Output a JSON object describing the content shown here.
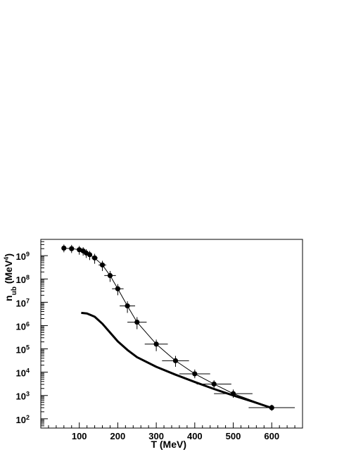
{
  "chart_data": {
    "type": "scatter",
    "title": "",
    "xlabel": "T (MeV)",
    "ylabel": {
      "base": "n",
      "sub": "ub",
      "rest": " (MeV",
      "sup": "4",
      "close": ")"
    },
    "xlim": [
      0,
      680
    ],
    "ylim": [
      40,
      5000000000
    ],
    "yscale": "log",
    "grid": false,
    "x_ticks": [
      {
        "value": 100,
        "label": "100"
      },
      {
        "value": 200,
        "label": "200"
      },
      {
        "value": 300,
        "label": "300"
      },
      {
        "value": 400,
        "label": "400"
      },
      {
        "value": 500,
        "label": "500"
      },
      {
        "value": 600,
        "label": "600"
      }
    ],
    "y_ticks": [
      {
        "value": 100,
        "base": "10",
        "exp": "2"
      },
      {
        "value": 1000,
        "base": "10",
        "exp": "3"
      },
      {
        "value": 10000,
        "base": "10",
        "exp": "4"
      },
      {
        "value": 100000,
        "base": "10",
        "exp": "5"
      },
      {
        "value": 1000000,
        "base": "10",
        "exp": "6"
      },
      {
        "value": 10000000,
        "base": "10",
        "exp": "7"
      },
      {
        "value": 100000000,
        "base": "10",
        "exp": "8"
      },
      {
        "value": 1000000000,
        "base": "10",
        "exp": "9"
      }
    ],
    "series": [
      {
        "kind": "points-with-errors",
        "connected": true,
        "color": "#000000",
        "points": [
          {
            "x": 60,
            "y": 2100000000.0,
            "xerr": 0,
            "ylo": 1400000000.0,
            "yhi": 3000000000.0
          },
          {
            "x": 80,
            "y": 2000000000.0,
            "xerr": 0,
            "ylo": 1300000000.0,
            "yhi": 2900000000.0
          },
          {
            "x": 100,
            "y": 1800000000.0,
            "xerr": 5,
            "ylo": 1100000000.0,
            "yhi": 2600000000.0
          },
          {
            "x": 110,
            "y": 1600000000.0,
            "xerr": 5,
            "ylo": 1000000000.0,
            "yhi": 2300000000.0
          },
          {
            "x": 118,
            "y": 1300000000.0,
            "xerr": 5,
            "ylo": 800000000.0,
            "yhi": 1900000000.0
          },
          {
            "x": 127,
            "y": 1100000000.0,
            "xerr": 5,
            "ylo": 650000000.0,
            "yhi": 1600000000.0
          },
          {
            "x": 140,
            "y": 800000000.0,
            "xerr": 8,
            "ylo": 450000000.0,
            "yhi": 1200000000.0
          },
          {
            "x": 160,
            "y": 400000000.0,
            "xerr": 10,
            "ylo": 220000000.0,
            "yhi": 600000000.0
          },
          {
            "x": 180,
            "y": 140000000.0,
            "xerr": 15,
            "ylo": 75000000.0,
            "yhi": 220000000.0
          },
          {
            "x": 200,
            "y": 38000000.0,
            "xerr": 15,
            "ylo": 20000000.0,
            "yhi": 60000000.0
          },
          {
            "x": 225,
            "y": 7000000.0,
            "xerr": 20,
            "ylo": 3500000.0,
            "yhi": 11000000.0
          },
          {
            "x": 250,
            "y": 1400000.0,
            "xerr": 25,
            "ylo": 700000.0,
            "yhi": 2300000.0
          },
          {
            "x": 300,
            "y": 160000.0,
            "xerr": 30,
            "ylo": 80000.0,
            "yhi": 250000.0
          },
          {
            "x": 350,
            "y": 31000.0,
            "xerr": 35,
            "ylo": 17000.0,
            "yhi": 50000.0
          },
          {
            "x": 400,
            "y": 8500.0,
            "xerr": 40,
            "ylo": 5500.0,
            "yhi": 13000.0
          },
          {
            "x": 450,
            "y": 3100.0,
            "xerr": 45,
            "ylo": 2000.0,
            "yhi": 4500.0
          },
          {
            "x": 500,
            "y": 1200.0,
            "xerr": 50,
            "ylo": 800.0,
            "yhi": 1800.0
          },
          {
            "x": 600,
            "y": 300.0,
            "xerr": 60,
            "ylo": 220.0,
            "yhi": 400.0
          }
        ]
      },
      {
        "kind": "curve",
        "color": "#000000",
        "points": [
          {
            "x": 105,
            "y": 3500000.0
          },
          {
            "x": 120,
            "y": 3300000.0
          },
          {
            "x": 140,
            "y": 2400000.0
          },
          {
            "x": 160,
            "y": 1200000.0
          },
          {
            "x": 180,
            "y": 500000.0
          },
          {
            "x": 200,
            "y": 210000.0
          },
          {
            "x": 225,
            "y": 90000.0
          },
          {
            "x": 250,
            "y": 44000.0
          },
          {
            "x": 300,
            "y": 17000.0
          },
          {
            "x": 350,
            "y": 7800.0
          },
          {
            "x": 400,
            "y": 3800.0
          },
          {
            "x": 450,
            "y": 1900.0
          },
          {
            "x": 500,
            "y": 1000.0
          },
          {
            "x": 550,
            "y": 550.0
          },
          {
            "x": 600,
            "y": 290.0
          }
        ]
      }
    ]
  }
}
